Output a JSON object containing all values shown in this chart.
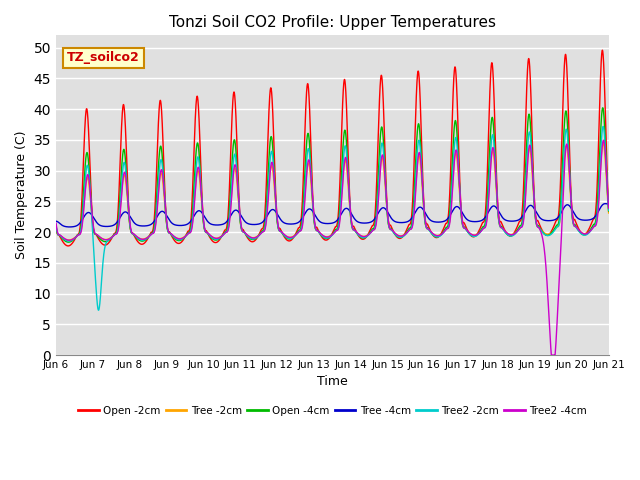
{
  "title": "Tonzi Soil CO2 Profile: Upper Temperatures",
  "xlabel": "Time",
  "ylabel": "Soil Temperature (C)",
  "ylim": [
    0,
    52
  ],
  "yticks": [
    0,
    5,
    10,
    15,
    20,
    25,
    30,
    35,
    40,
    45,
    50
  ],
  "plot_bg_color": "#e0e0e0",
  "series": [
    {
      "label": "Open -2cm",
      "color": "#ff0000"
    },
    {
      "label": "Tree -2cm",
      "color": "#ffa500"
    },
    {
      "label": "Open -4cm",
      "color": "#00bb00"
    },
    {
      "label": "Tree -4cm",
      "color": "#0000cc"
    },
    {
      "label": "Tree2 -2cm",
      "color": "#00cccc"
    },
    {
      "label": "Tree2 -4cm",
      "color": "#cc00cc"
    }
  ],
  "annotation_box": {
    "text": "TZ_soilco2",
    "facecolor": "#ffffcc",
    "edgecolor": "#cc8800",
    "fontcolor": "#cc0000"
  },
  "n_days": 15,
  "start_day": 6,
  "points_per_day": 288
}
